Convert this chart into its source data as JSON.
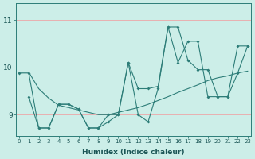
{
  "xlabel": "Humidex (Indice chaleur)",
  "x_ticks": [
    0,
    1,
    2,
    3,
    4,
    5,
    6,
    7,
    8,
    9,
    10,
    11,
    12,
    13,
    14,
    15,
    16,
    17,
    18,
    19,
    20,
    21,
    22,
    23
  ],
  "y_ticks": [
    9,
    10,
    11
  ],
  "ylim": [
    8.55,
    11.35
  ],
  "xlim": [
    -0.3,
    23.3
  ],
  "bg_color": "#cceee8",
  "grid_color": "#e8b0b0",
  "line_color": "#2d7d78",
  "line1_no_marker": {
    "x": [
      0,
      1,
      2,
      3,
      4,
      5,
      6,
      7,
      8,
      9,
      10,
      11,
      12,
      13,
      14,
      15,
      16,
      17,
      18,
      19,
      20,
      21,
      22,
      23
    ],
    "y": [
      9.9,
      9.9,
      9.55,
      9.35,
      9.2,
      9.15,
      9.1,
      9.05,
      9.0,
      9.0,
      9.05,
      9.1,
      9.15,
      9.22,
      9.3,
      9.38,
      9.47,
      9.55,
      9.63,
      9.72,
      9.78,
      9.82,
      9.88,
      9.92
    ]
  },
  "line2_jagged": {
    "x": [
      0,
      1,
      2,
      3,
      4,
      5,
      6,
      7,
      8,
      9,
      10,
      11,
      12,
      13,
      14,
      15,
      16,
      17,
      18,
      19,
      20,
      21,
      22,
      23
    ],
    "y": [
      9.88,
      9.88,
      8.72,
      8.72,
      9.22,
      9.22,
      9.12,
      8.72,
      8.72,
      9.0,
      9.0,
      10.1,
      9.55,
      9.55,
      9.6,
      10.85,
      10.85,
      10.15,
      9.95,
      9.95,
      9.38,
      9.38,
      10.45,
      10.45
    ]
  },
  "line3_jagged": {
    "x": [
      1,
      2,
      3,
      4,
      5,
      6,
      7,
      8,
      9,
      10,
      11,
      12,
      13,
      14,
      15,
      16,
      17,
      18,
      19,
      20,
      21,
      22,
      23
    ],
    "y": [
      9.38,
      8.72,
      8.72,
      9.22,
      9.22,
      9.12,
      8.72,
      8.72,
      8.85,
      9.0,
      10.1,
      9.0,
      8.85,
      9.55,
      10.85,
      10.1,
      10.55,
      10.55,
      9.38,
      9.38,
      9.38,
      9.88,
      10.45
    ]
  }
}
